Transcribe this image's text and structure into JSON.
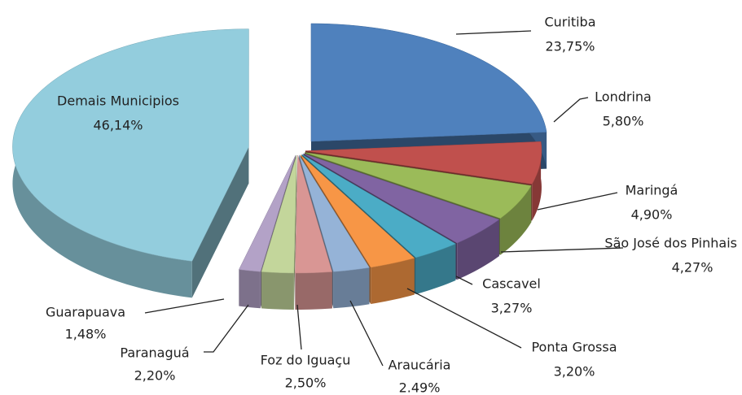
{
  "chart_data": {
    "type": "pie3d",
    "categories": [
      "Curitiba",
      "Londrina",
      "Maringá",
      "São José dos Pinhais",
      "Cascavel",
      "Ponta Grossa",
      "Araucária",
      "Foz do Iguaçu",
      "Paranaguá",
      "Guarapuava",
      "Demais Municipios"
    ],
    "values": [
      23.75,
      5.8,
      4.9,
      4.27,
      3.27,
      3.2,
      2.49,
      2.5,
      2.2,
      1.48,
      46.14
    ],
    "value_labels": [
      "23,75%",
      "5,80%",
      "4,90%",
      "4,27%",
      "3,27%",
      "3,20%",
      "2.49%",
      "2,50%",
      "2,20%",
      "1,48%",
      "46,14%"
    ],
    "colors": [
      "#4f81bd",
      "#c0504d",
      "#9bbb59",
      "#8064a2",
      "#4bacc6",
      "#f79646",
      "#95b3d7",
      "#d99694",
      "#c3d69b",
      "#b3a2c7",
      "#93cddd"
    ]
  }
}
